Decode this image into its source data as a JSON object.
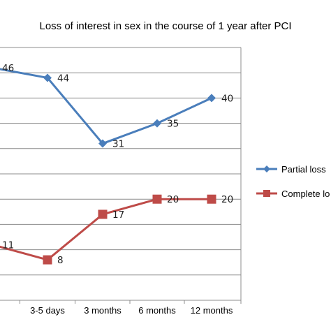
{
  "chart_data": {
    "type": "line",
    "title": "Loss of interest in sex in the course of 1 year after PCI",
    "categories": [
      "",
      "3-5 days",
      "3 months",
      "6 months",
      "12 months"
    ],
    "series": [
      {
        "name": "Partial loss",
        "values": [
          46,
          44,
          31,
          35,
          40
        ],
        "labels": [
          "46",
          "44",
          "31",
          "35",
          "40"
        ],
        "color": "#4a7ebb",
        "marker": "diamond"
      },
      {
        "name": "Complete lo",
        "values": [
          11,
          8,
          17,
          20,
          20
        ],
        "labels": [
          "11",
          "8",
          "17",
          "20",
          "20"
        ],
        "color": "#be4b48",
        "marker": "square"
      }
    ],
    "ylim": [
      0,
      50
    ],
    "grid": true,
    "legend": "right"
  }
}
